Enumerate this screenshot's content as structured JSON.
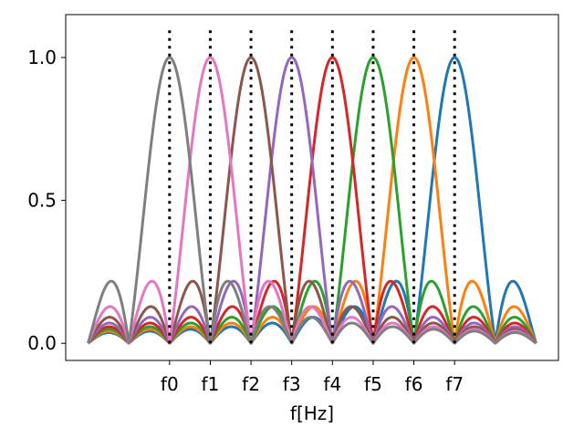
{
  "chart_data": {
    "type": "line",
    "title": "",
    "xlabel": "f[Hz]",
    "ylabel": "",
    "x_range": [
      -2,
      9
    ],
    "xlim": [
      -2.55,
      9.55
    ],
    "ylim": [
      -0.06,
      1.15
    ],
    "x_ticks": [
      {
        "x": 0,
        "label": "f0"
      },
      {
        "x": 1,
        "label": "f1"
      },
      {
        "x": 2,
        "label": "f2"
      },
      {
        "x": 3,
        "label": "f3"
      },
      {
        "x": 4,
        "label": "f4"
      },
      {
        "x": 5,
        "label": "f5"
      },
      {
        "x": 6,
        "label": "f6"
      },
      {
        "x": 7,
        "label": "f7"
      }
    ],
    "y_ticks": [
      {
        "y": 0.0,
        "label": "0.0"
      },
      {
        "y": 0.5,
        "label": "0.5"
      },
      {
        "y": 1.0,
        "label": "1.0"
      }
    ],
    "function": "|sinc(x - center)|",
    "series": [
      {
        "center": 7,
        "color": "#1f77b4"
      },
      {
        "center": 6,
        "color": "#ff7f0e"
      },
      {
        "center": 5,
        "color": "#2ca02c"
      },
      {
        "center": 4,
        "color": "#d62728"
      },
      {
        "center": 3,
        "color": "#9467bd"
      },
      {
        "center": 2,
        "color": "#8c564b"
      },
      {
        "center": 1,
        "color": "#e377c2"
      },
      {
        "center": 0,
        "color": "#7f7f7f"
      }
    ],
    "markers": {
      "x": [
        0,
        1,
        2,
        3,
        4,
        5,
        6,
        7
      ],
      "y_top": 1.1,
      "color": "#000000",
      "style": "dotted"
    },
    "grid": false,
    "legend": "none"
  }
}
